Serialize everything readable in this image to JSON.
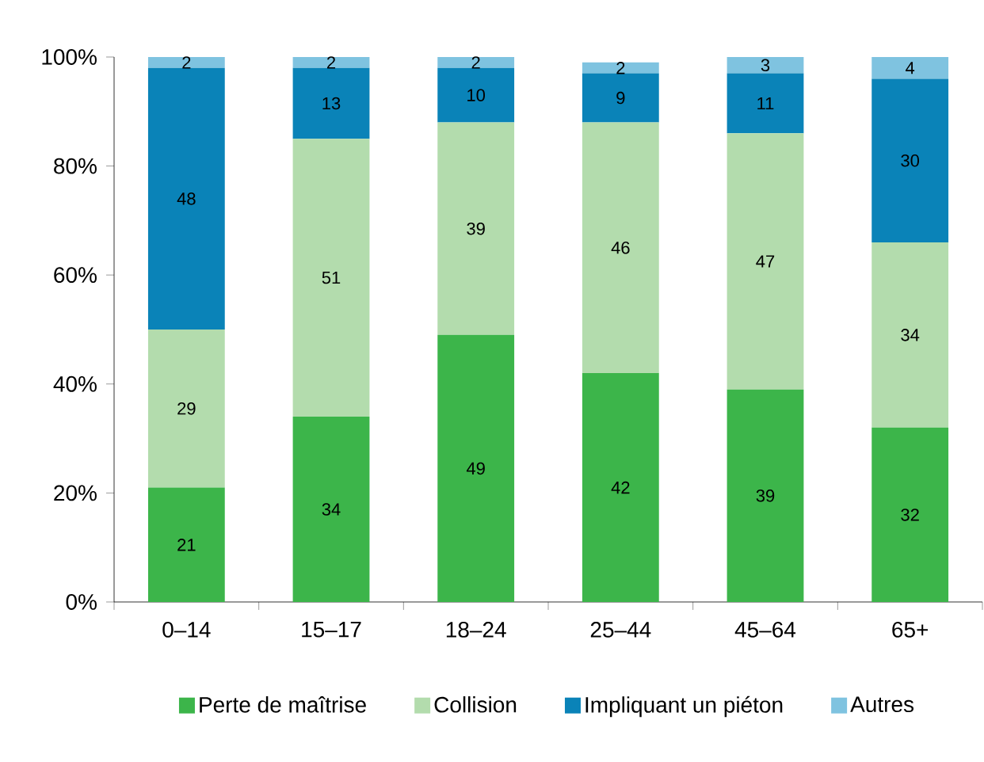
{
  "chart_data": {
    "type": "bar",
    "stacked": true,
    "data_labels": true,
    "grid": false,
    "legend": "bottom",
    "categories": [
      "0–14",
      "15–17",
      "18–24",
      "25–44",
      "45–64",
      "65+"
    ],
    "series": [
      {
        "name": "Perte de maîtrise",
        "color": "#3cb54a",
        "values": [
          21,
          34,
          49,
          42,
          39,
          32
        ]
      },
      {
        "name": "Collision",
        "color": "#b3dcad",
        "values": [
          29,
          51,
          39,
          46,
          47,
          34
        ]
      },
      {
        "name": "Impliquant un piéton",
        "color": "#0a83b8",
        "values": [
          48,
          13,
          10,
          9,
          11,
          30
        ]
      },
      {
        "name": "Autres",
        "color": "#7fc3e0",
        "values": [
          2,
          2,
          2,
          2,
          3,
          4
        ]
      }
    ],
    "ylim": [
      0,
      100
    ],
    "yticks": [
      {
        "value": 0,
        "label": "0%"
      },
      {
        "value": 20,
        "label": "20%"
      },
      {
        "value": 40,
        "label": "40%"
      },
      {
        "value": 60,
        "label": "60%"
      },
      {
        "value": 80,
        "label": "80%"
      },
      {
        "value": 100,
        "label": "100%"
      }
    ]
  }
}
